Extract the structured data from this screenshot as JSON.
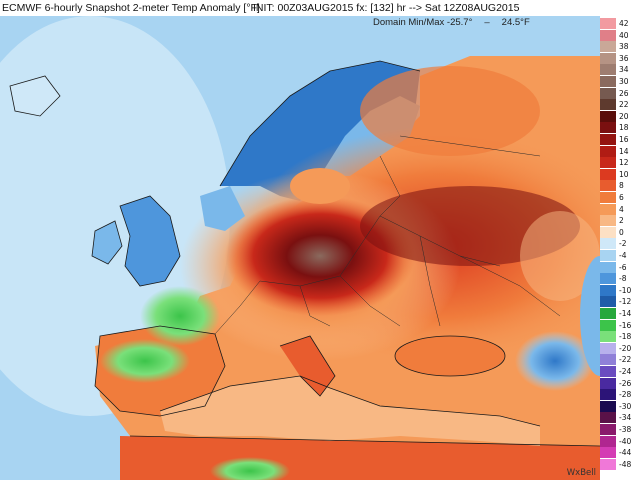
{
  "header": {
    "title": "ECMWF 6-hourly Snapshot 2-meter Temp Anomaly [°F]",
    "run_info": "INIT: 00Z03AUG2015  fx: [132] hr --> Sat 12Z08AUG2015"
  },
  "domain_minmax": {
    "label": "Domain Min/Max",
    "min": "-25.7°",
    "max": "24.5°F"
  },
  "watermark": "WxBell",
  "colorbar": {
    "unit": "°F",
    "levels": [
      {
        "label": "42",
        "color": "#f29aa0"
      },
      {
        "label": "40",
        "color": "#e07f88"
      },
      {
        "label": "38",
        "color": "#c9a898"
      },
      {
        "label": "36",
        "color": "#b59384"
      },
      {
        "label": "34",
        "color": "#9e7d70"
      },
      {
        "label": "30",
        "color": "#8a6a5e"
      },
      {
        "label": "26",
        "color": "#765a50"
      },
      {
        "label": "22",
        "color": "#5e3a2e"
      },
      {
        "label": "20",
        "color": "#5a0d0a"
      },
      {
        "label": "18",
        "color": "#7a1010"
      },
      {
        "label": "16",
        "color": "#941410"
      },
      {
        "label": "14",
        "color": "#b01c14"
      },
      {
        "label": "12",
        "color": "#c8281a"
      },
      {
        "label": "10",
        "color": "#dc3a20"
      },
      {
        "label": "8",
        "color": "#e85c2e"
      },
      {
        "label": "6",
        "color": "#f07c3c"
      },
      {
        "label": "4",
        "color": "#f59a58"
      },
      {
        "label": "2",
        "color": "#f8b884"
      },
      {
        "label": "0",
        "color": "#fce0c4"
      },
      {
        "label": "-2",
        "color": "#cfe8f8"
      },
      {
        "label": "-4",
        "color": "#a8d4f2"
      },
      {
        "label": "-6",
        "color": "#7ab8ea"
      },
      {
        "label": "-8",
        "color": "#4e96dc"
      },
      {
        "label": "-10",
        "color": "#2f78c8"
      },
      {
        "label": "-12",
        "color": "#1f5ca8"
      },
      {
        "label": "-14",
        "color": "#27a83c"
      },
      {
        "label": "-16",
        "color": "#3cc44a"
      },
      {
        "label": "-18",
        "color": "#7ae07a"
      },
      {
        "label": "-20",
        "color": "#b8b0ec"
      },
      {
        "label": "-22",
        "color": "#9080d8"
      },
      {
        "label": "-24",
        "color": "#6a4cc0"
      },
      {
        "label": "-26",
        "color": "#4a2aa0"
      },
      {
        "label": "-28",
        "color": "#2c1478"
      },
      {
        "label": "-30",
        "color": "#1a0a50"
      },
      {
        "label": "-34",
        "color": "#5a1248"
      },
      {
        "label": "-38",
        "color": "#8a1a6c"
      },
      {
        "label": "-40",
        "color": "#b02690"
      },
      {
        "label": "-44",
        "color": "#d43cb4"
      },
      {
        "label": "-48",
        "color": "#f078d8"
      }
    ]
  }
}
